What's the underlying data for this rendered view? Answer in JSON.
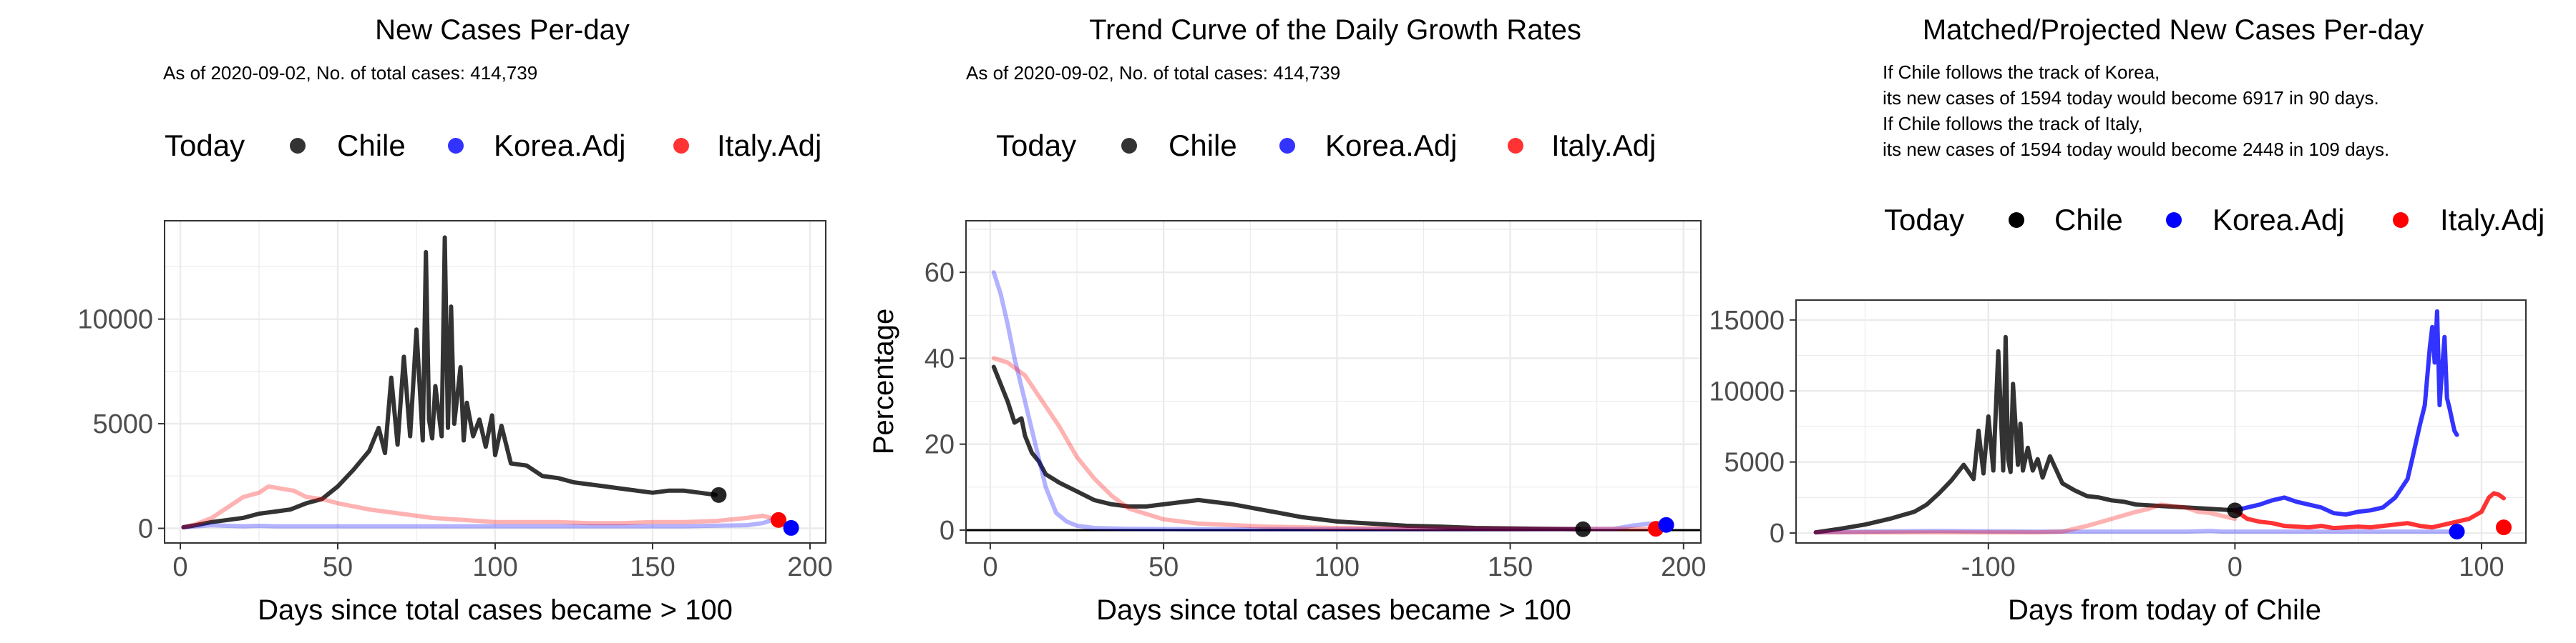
{
  "chart_data": [
    {
      "type": "line",
      "title": "New Cases Per-day",
      "subtitle": "As of 2020-09-02, No. of total cases: 414,739",
      "legend": {
        "title": "Today",
        "placement": "top",
        "entries": [
          "Chile",
          "Korea.Adj",
          "Italy.Adj"
        ]
      },
      "xlabel": "Days since total cases became > 100",
      "ylabel": "",
      "xlim": [
        -5,
        205
      ],
      "ylim": [
        -700,
        14700
      ],
      "xticks": [
        0,
        50,
        100,
        150,
        200
      ],
      "yticks": [
        0,
        5000,
        10000
      ],
      "grid": true,
      "series": [
        {
          "name": "Chile",
          "color": "#000000",
          "opacity": 0.8,
          "x": [
            1,
            5,
            10,
            15,
            20,
            25,
            30,
            35,
            40,
            45,
            50,
            55,
            60,
            63,
            65,
            67,
            69,
            71,
            73,
            75,
            77,
            78,
            79,
            80,
            81,
            83,
            84,
            85,
            86,
            87,
            89,
            90,
            91,
            93,
            95,
            97,
            99,
            100,
            102,
            105,
            110,
            115,
            120,
            125,
            130,
            135,
            140,
            145,
            150,
            155,
            160,
            165,
            170
          ],
          "y": [
            50,
            150,
            300,
            400,
            500,
            700,
            800,
            900,
            1200,
            1400,
            2000,
            2800,
            3700,
            4800,
            3600,
            7200,
            4000,
            8200,
            4400,
            9500,
            4200,
            13200,
            5200,
            4300,
            6800,
            4400,
            13900,
            4800,
            10600,
            5000,
            7700,
            4200,
            6000,
            4400,
            5200,
            3900,
            5400,
            3500,
            4900,
            3100,
            3000,
            2500,
            2400,
            2200,
            2100,
            2000,
            1900,
            1800,
            1700,
            1800,
            1800,
            1700,
            1600
          ]
        },
        {
          "name": "Korea.Adj",
          "color": "#0000ff",
          "opacity": 0.3,
          "x": [
            1,
            5,
            10,
            15,
            20,
            25,
            30,
            40,
            50,
            60,
            80,
            100,
            120,
            140,
            160,
            180,
            185,
            188,
            190,
            192,
            194
          ],
          "y": [
            50,
            100,
            150,
            120,
            100,
            120,
            100,
            100,
            100,
            100,
            100,
            100,
            100,
            100,
            100,
            150,
            250,
            400,
            300,
            200,
            50
          ]
        },
        {
          "name": "Italy.Adj",
          "color": "#ff0000",
          "opacity": 0.3,
          "x": [
            1,
            5,
            10,
            15,
            20,
            25,
            28,
            32,
            36,
            40,
            45,
            50,
            60,
            70,
            80,
            90,
            100,
            110,
            120,
            130,
            140,
            150,
            160,
            170,
            180,
            185,
            190
          ],
          "y": [
            50,
            200,
            500,
            1000,
            1500,
            1700,
            2000,
            1900,
            1800,
            1500,
            1400,
            1200,
            900,
            700,
            500,
            400,
            300,
            300,
            300,
            250,
            250,
            300,
            300,
            350,
            500,
            600,
            400
          ]
        }
      ],
      "today_points": [
        {
          "series": "Chile",
          "x": 171,
          "y": 1594
        },
        {
          "series": "Italy.Adj",
          "x": 190,
          "y": 400
        },
        {
          "series": "Korea.Adj",
          "x": 194,
          "y": 20
        }
      ]
    },
    {
      "type": "line",
      "title": "Trend Curve of the Daily Growth Rates",
      "subtitle": "As of 2020-09-02, No. of total cases: 414,739",
      "legend": {
        "title": "Today",
        "placement": "top",
        "entries": [
          "Chile",
          "Korea.Adj",
          "Italy.Adj"
        ]
      },
      "xlabel": "Days since total cases became > 100",
      "ylabel": "Percentage",
      "xlim": [
        -7,
        205
      ],
      "ylim": [
        -3,
        72
      ],
      "xticks": [
        0,
        50,
        100,
        150,
        200
      ],
      "yticks": [
        0,
        20,
        40,
        60
      ],
      "grid": true,
      "hline": 0,
      "series": [
        {
          "name": "Chile",
          "color": "#000000",
          "opacity": 0.8,
          "x": [
            1,
            3,
            5,
            7,
            9,
            10,
            12,
            14,
            16,
            18,
            20,
            25,
            30,
            35,
            40,
            45,
            50,
            55,
            60,
            65,
            70,
            80,
            90,
            100,
            110,
            120,
            130,
            140,
            150,
            160,
            170
          ],
          "y": [
            38,
            34,
            30,
            25,
            26,
            22,
            18,
            16,
            13,
            12,
            11,
            9,
            7,
            6,
            5.5,
            5.5,
            6,
            6.5,
            7,
            6.5,
            6,
            4.5,
            3,
            2,
            1.5,
            1,
            0.8,
            0.5,
            0.4,
            0.3,
            0.2
          ]
        },
        {
          "name": "Korea.Adj",
          "color": "#0000ff",
          "opacity": 0.3,
          "x": [
            1,
            3,
            5,
            7,
            10,
            13,
            16,
            19,
            22,
            25,
            30,
            40,
            60,
            100,
            150,
            180,
            185,
            190,
            195
          ],
          "y": [
            60,
            55,
            48,
            40,
            30,
            20,
            10,
            4,
            2,
            1,
            0.5,
            0.3,
            0.2,
            0.2,
            0.2,
            0.3,
            1,
            1.5,
            1.2
          ]
        },
        {
          "name": "Italy.Adj",
          "color": "#ff0000",
          "opacity": 0.3,
          "x": [
            1,
            5,
            10,
            15,
            20,
            25,
            30,
            35,
            40,
            50,
            60,
            80,
            100,
            150,
            190
          ],
          "y": [
            40,
            39,
            36,
            30,
            24,
            17,
            12,
            8,
            5,
            2.5,
            1.5,
            0.8,
            0.5,
            0.3,
            0.3
          ]
        }
      ],
      "today_points": [
        {
          "series": "Chile",
          "x": 171,
          "y": 0.2
        },
        {
          "series": "Italy.Adj",
          "x": 192,
          "y": 0.3
        },
        {
          "series": "Korea.Adj",
          "x": 195,
          "y": 1.2
        }
      ]
    },
    {
      "type": "line",
      "title": "Matched/Projected New Cases Per-day",
      "subtitle": [
        "If Chile follows the track of Korea,",
        "its new cases of 1594 today would become 6917 in 90 days.",
        "If Chile follows the track of Italy,",
        "its new cases of 1594 today would become 2448 in 109 days."
      ],
      "legend": {
        "title": "Today",
        "placement": "top",
        "entries": [
          "Chile",
          "Korea.Adj",
          "Italy.Adj"
        ]
      },
      "xlabel": "Days from today of Chile",
      "ylabel": "",
      "xlim": [
        -178,
        118
      ],
      "ylim": [
        -700,
        16400
      ],
      "xticks": [
        -100,
        0,
        100
      ],
      "yticks": [
        0,
        5000,
        10000,
        15000
      ],
      "grid": true,
      "series": [
        {
          "name": "Chile",
          "color": "#000000",
          "opacity": 0.8,
          "x": [
            -170,
            -160,
            -150,
            -140,
            -130,
            -125,
            -120,
            -115,
            -110,
            -106,
            -104,
            -102,
            -100,
            -98,
            -96,
            -94,
            -93,
            -92,
            -91,
            -90,
            -88,
            -87,
            -86,
            -84,
            -82,
            -80,
            -78,
            -75,
            -70,
            -65,
            -60,
            -55,
            -50,
            -45,
            -40,
            -30,
            -20,
            -10,
            0
          ],
          "y": [
            50,
            300,
            600,
            1000,
            1500,
            2000,
            2800,
            3700,
            4800,
            3800,
            7200,
            4200,
            8200,
            4400,
            12800,
            4400,
            13800,
            5200,
            4300,
            10500,
            4800,
            7700,
            4400,
            6000,
            4400,
            5200,
            3900,
            5400,
            3500,
            3000,
            2600,
            2500,
            2300,
            2200,
            2000,
            1900,
            1800,
            1700,
            1594
          ]
        },
        {
          "name": "Korea.Adj",
          "color": "#0000ff",
          "opacity": 0.8,
          "x": [
            0,
            5,
            10,
            15,
            20,
            25,
            30,
            35,
            40,
            45,
            50,
            55,
            60,
            65,
            70,
            72,
            75,
            77,
            79,
            80,
            81,
            82,
            83,
            84,
            85,
            86,
            87,
            88,
            89,
            90
          ],
          "y": [
            1594,
            1800,
            2000,
            2300,
            2500,
            2200,
            2000,
            1800,
            1400,
            1300,
            1500,
            1600,
            1800,
            2500,
            3800,
            5300,
            7600,
            9000,
            13000,
            14500,
            12000,
            15600,
            9000,
            11500,
            13800,
            9500,
            8800,
            8000,
            7200,
            6917
          ]
        },
        {
          "name": "Italy.Adj",
          "color": "#ff0000",
          "opacity": 0.8,
          "x": [
            0,
            5,
            10,
            15,
            20,
            25,
            30,
            35,
            40,
            45,
            50,
            55,
            60,
            65,
            70,
            75,
            80,
            85,
            90,
            95,
            100,
            103,
            105,
            107,
            109
          ],
          "y": [
            1594,
            1000,
            800,
            700,
            500,
            450,
            400,
            500,
            350,
            400,
            450,
            400,
            500,
            600,
            700,
            500,
            400,
            600,
            800,
            1000,
            1500,
            2500,
            2800,
            2700,
            2448
          ]
        },
        {
          "name": "Korea.Adj (history)",
          "color": "#0000ff",
          "opacity": 0.3,
          "x": [
            -170,
            -150,
            -120,
            -100,
            -80,
            -60,
            -40,
            -20,
            -10,
            -5,
            0,
            10,
            20,
            40,
            60,
            80,
            90
          ],
          "y": [
            50,
            100,
            150,
            120,
            100,
            100,
            100,
            100,
            150,
            100,
            100,
            100,
            100,
            100,
            100,
            100,
            100
          ]
        },
        {
          "name": "Italy.Adj (history)",
          "color": "#ff0000",
          "opacity": 0.3,
          "x": [
            -170,
            -160,
            -150,
            -140,
            -130,
            -120,
            -110,
            -100,
            -90,
            -80,
            -70,
            -60,
            -50,
            -40,
            -35,
            -30,
            -25,
            -20,
            -15,
            -10,
            -5,
            0
          ],
          "y": [
            50,
            50,
            50,
            50,
            50,
            50,
            50,
            50,
            50,
            50,
            100,
            500,
            1000,
            1500,
            1700,
            2000,
            1900,
            1800,
            1500,
            1400,
            1200,
            1000
          ]
        }
      ],
      "today_points": [
        {
          "series": "Chile",
          "x": 0,
          "y": 1594
        },
        {
          "series": "Korea.Adj",
          "x": 90,
          "y": 100
        },
        {
          "series": "Italy.Adj",
          "x": 109,
          "y": 400
        }
      ]
    }
  ],
  "colors": {
    "Chile": "#000000",
    "Korea.Adj": "#0000ff",
    "Italy.Adj": "#ff0000"
  }
}
